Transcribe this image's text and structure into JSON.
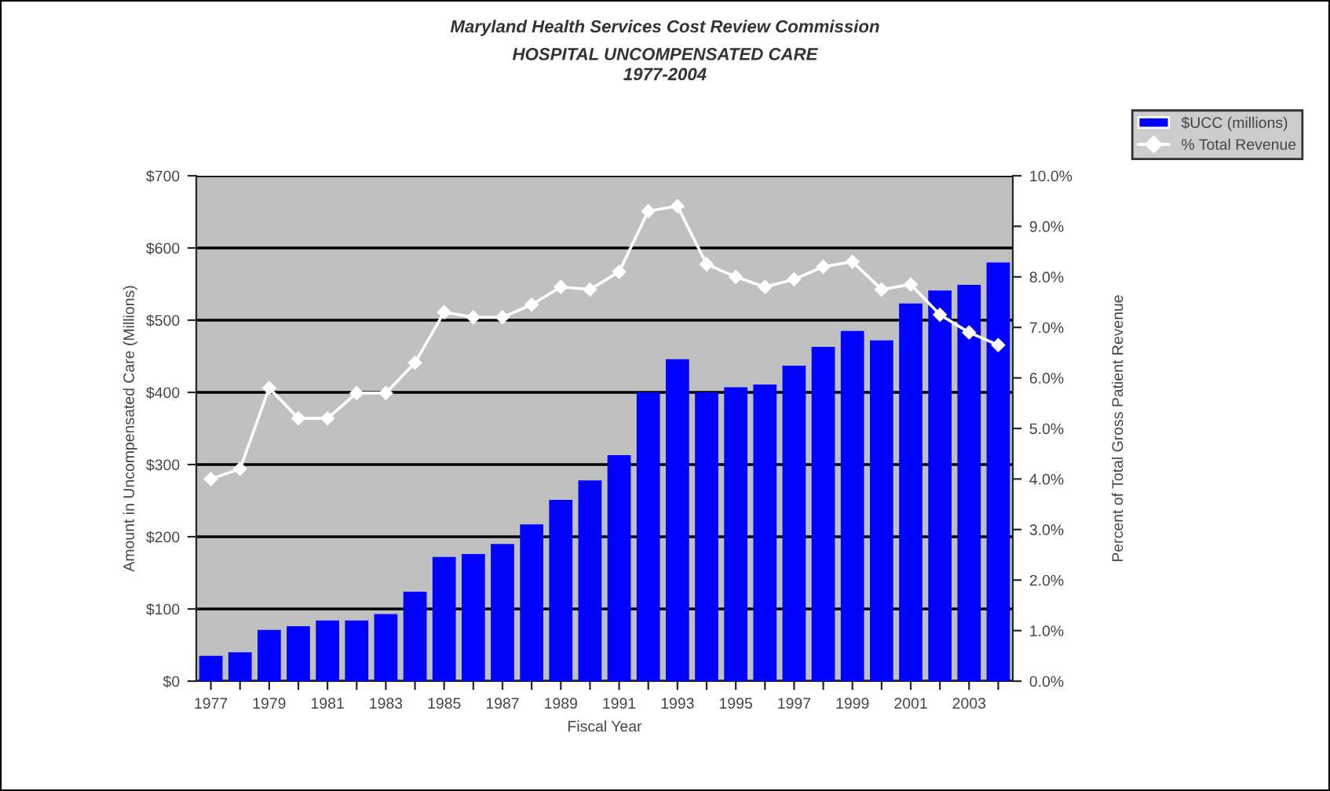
{
  "chart_data": {
    "type": "bar",
    "title": "Maryland Health Services Cost Review Commission",
    "subtitle": "HOSPITAL UNCOMPENSATED CARE\n1977-2004",
    "xlabel": "Fiscal Year",
    "ylabel": "Amount in Uncompensated Care (Millions)",
    "y2label": "Percent of Total Gross Patient Revenue",
    "categories": [
      "1977",
      null,
      "1979",
      null,
      "1981",
      null,
      "1983",
      null,
      "1985",
      null,
      "1987",
      null,
      "1989",
      null,
      "1991",
      null,
      "1993",
      null,
      "1995",
      null,
      "1997",
      null,
      "1999",
      null,
      "2001",
      null,
      "2003",
      null
    ],
    "series": [
      {
        "name": "$UCC (millions)",
        "color": "#0000ff",
        "values": [
          35,
          40,
          71,
          76,
          84,
          84,
          93,
          124,
          172,
          176,
          190,
          217,
          251,
          278,
          313,
          400,
          446,
          400,
          407,
          411,
          437,
          463,
          485,
          472,
          523,
          541,
          549,
          580
        ]
      },
      {
        "name": "% Total Revenue",
        "type": "line",
        "axis": "y2",
        "color": "#ffffff",
        "marker": "diamond",
        "values": [
          4.0,
          4.2,
          5.8,
          5.2,
          5.2,
          5.7,
          5.7,
          6.3,
          7.3,
          7.2,
          7.2,
          7.45,
          7.8,
          7.75,
          8.1,
          9.3,
          9.4,
          8.25,
          8.0,
          7.8,
          7.95,
          8.2,
          8.3,
          7.75,
          7.85,
          7.25,
          6.9,
          6.65
        ]
      }
    ],
    "ylim": [
      0,
      700
    ],
    "yticks": [
      {
        "value": 0,
        "label": "$0"
      },
      {
        "value": 100,
        "label": "$100"
      },
      {
        "value": 200,
        "label": "$200"
      },
      {
        "value": 300,
        "label": "$300"
      },
      {
        "value": 400,
        "label": "$400"
      },
      {
        "value": 500,
        "label": "$500"
      },
      {
        "value": 600,
        "label": "$600"
      },
      {
        "value": 700,
        "label": "$700"
      }
    ],
    "y2lim": [
      0,
      10
    ],
    "y2ticks": [
      {
        "value": 0,
        "label": "0.0%"
      },
      {
        "value": 1,
        "label": "1.0%"
      },
      {
        "value": 2,
        "label": "2.0%"
      },
      {
        "value": 3,
        "label": "3.0%"
      },
      {
        "value": 4,
        "label": "4.0%"
      },
      {
        "value": 5,
        "label": "5.0%"
      },
      {
        "value": 6,
        "label": "6.0%"
      },
      {
        "value": 7,
        "label": "7.0%"
      },
      {
        "value": 8,
        "label": "8.0%"
      },
      {
        "value": 9,
        "label": "9.0%"
      },
      {
        "value": 10,
        "label": "10.0%"
      }
    ],
    "grid": "y",
    "legend": "top right"
  }
}
